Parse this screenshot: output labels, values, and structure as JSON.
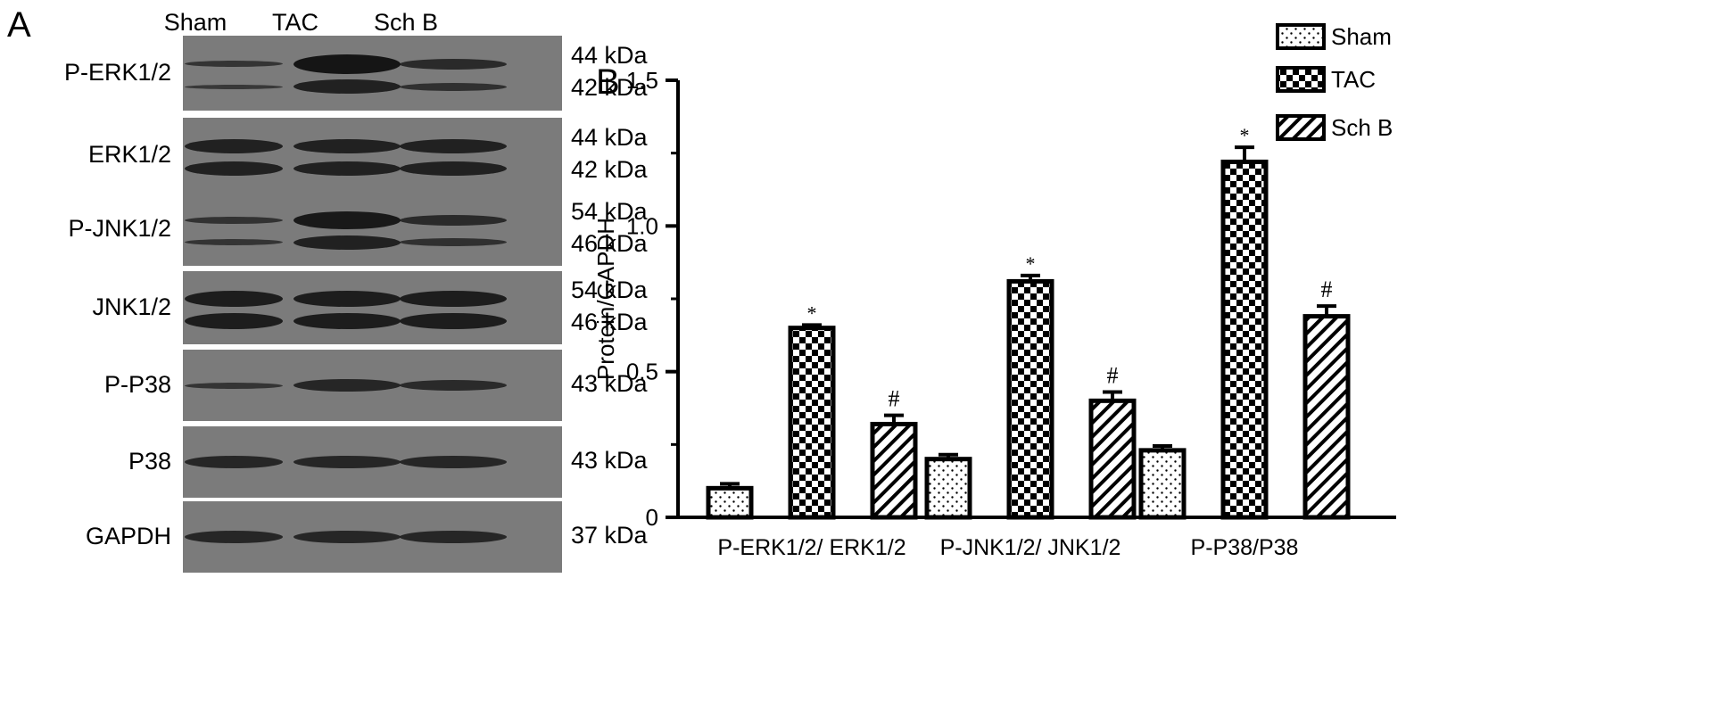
{
  "panels": {
    "a": "A",
    "b": "B"
  },
  "lanes": [
    "Sham",
    "TAC",
    "Sch B"
  ],
  "blots": [
    {
      "label": "P-ERK1/2",
      "mw": [
        "44 kDa",
        "42 kDa"
      ]
    },
    {
      "label": "ERK1/2",
      "mw": [
        "44 kDa",
        "42 kDa"
      ]
    },
    {
      "label": "P-JNK1/2",
      "mw": [
        "54 kDa",
        "46 kDa"
      ]
    },
    {
      "label": "JNK1/2",
      "mw": [
        "54 kDa",
        "46 kDa"
      ]
    },
    {
      "label": "P-P38",
      "mw": [
        "43 kDa"
      ]
    },
    {
      "label": "P38",
      "mw": [
        "43 kDa"
      ]
    },
    {
      "label": "GAPDH",
      "mw": [
        "37 kDa"
      ]
    }
  ],
  "chart_data": {
    "type": "bar",
    "categories": [
      "P-ERK1/2/ ERK1/2",
      "P-JNK1/2/ JNK1/2",
      "P-P38/P38"
    ],
    "series": [
      {
        "name": "Sham",
        "values": [
          0.1,
          0.2,
          0.23
        ],
        "errors": [
          0.015,
          0.015,
          0.015
        ],
        "marks": [
          "",
          "",
          ""
        ],
        "pattern": "dots"
      },
      {
        "name": "TAC",
        "values": [
          0.65,
          0.81,
          1.22
        ],
        "errors": [
          0.01,
          0.02,
          0.05
        ],
        "marks": [
          "*",
          "*",
          "*"
        ],
        "pattern": "checker"
      },
      {
        "name": "Sch B",
        "values": [
          0.32,
          0.4,
          0.69
        ],
        "errors": [
          0.03,
          0.03,
          0.035
        ],
        "marks": [
          "#",
          "#",
          "#"
        ],
        "pattern": "hatch"
      }
    ],
    "xlabel": "",
    "ylabel": "Protein/GAPDH",
    "ylim": [
      0,
      1.5
    ],
    "yticks": [
      "0",
      "0.5",
      "1.0",
      "1.5"
    ],
    "grid": false,
    "legend": "top-right"
  }
}
